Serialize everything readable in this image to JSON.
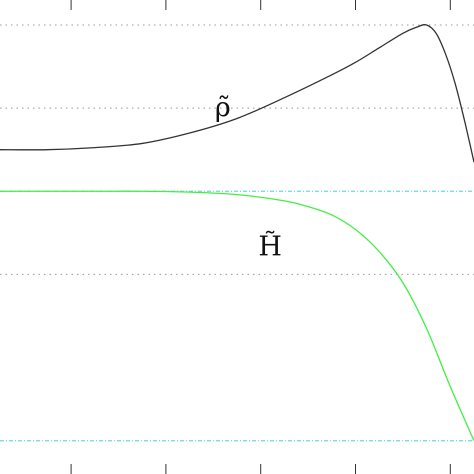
{
  "chart_data": {
    "type": "line",
    "title": "",
    "xlabel": "",
    "ylabel": "",
    "grid": true,
    "grid_style": "dotted",
    "legend": "none",
    "x_range": [
      0,
      1
    ],
    "y_range": [
      -0.08,
      1.06
    ],
    "series": [
      {
        "name": "ρ̃",
        "color": "#333333",
        "x": [
          0,
          0.1,
          0.2,
          0.3,
          0.4,
          0.5,
          0.6,
          0.7,
          0.75,
          0.8,
          0.85,
          0.88,
          0.9,
          0.92,
          0.94,
          0.96,
          0.98,
          1.0
        ],
        "y": [
          0.7,
          0.7,
          0.705,
          0.715,
          0.74,
          0.775,
          0.825,
          0.88,
          0.91,
          0.945,
          0.98,
          0.995,
          1.0,
          0.98,
          0.93,
          0.86,
          0.77,
          0.67
        ]
      },
      {
        "name": "H̃",
        "color": "#44ee44",
        "x": [
          0,
          0.1,
          0.2,
          0.3,
          0.4,
          0.5,
          0.6,
          0.65,
          0.7,
          0.75,
          0.8,
          0.85,
          0.9,
          0.95,
          1.0
        ],
        "y": [
          0.6,
          0.6,
          0.6,
          0.6,
          0.598,
          0.592,
          0.577,
          0.563,
          0.543,
          0.508,
          0.455,
          0.38,
          0.27,
          0.13,
          0.0
        ]
      }
    ],
    "annotations": [
      {
        "text": "ρ̃",
        "x": 0.47,
        "y": 0.78
      },
      {
        "text": "H̃",
        "x": 0.57,
        "y": 0.445
      }
    ],
    "grid_y": [
      1.0,
      0.6,
      0.8,
      0.4,
      0.0
    ],
    "tick_x": [
      0.15,
      0.35,
      0.55,
      0.75,
      0.95
    ]
  },
  "colors": {
    "background": "#ffffff",
    "grid_dark": "#999999",
    "grid_cyan": "#66dddd",
    "axis": "#333333"
  }
}
